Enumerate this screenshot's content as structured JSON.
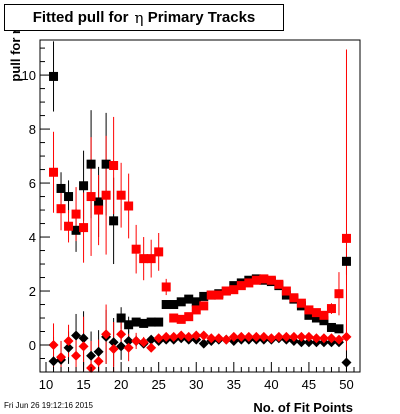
{
  "title": {
    "text": "Fitted pull for ",
    "symbol": "η",
    "suffix": " Primary Tracks"
  },
  "timestamp": "Fri Jun 26 19:12:16 2015",
  "colors": {
    "black_series": "#000000",
    "red_series": "#ff0000",
    "frame": "#000000"
  },
  "chart_data": {
    "type": "scatter",
    "title": "Fitted pull for η Primary Tracks",
    "xlabel": "No. of Fit Points",
    "ylabel": "pull for η",
    "xlim": [
      9.2,
      51.8
    ],
    "ylim": [
      -1.0,
      11.3
    ],
    "xticks": [
      10,
      15,
      20,
      25,
      30,
      35,
      40,
      45,
      50
    ],
    "yticks": [
      0,
      2,
      4,
      6,
      8,
      10
    ],
    "grid": false,
    "series": [
      {
        "marker": "square",
        "color": "#000000",
        "x": [
          11,
          12,
          13,
          14,
          15,
          16,
          17,
          18,
          19,
          20,
          21,
          22,
          23,
          24,
          25,
          26,
          27,
          28,
          29,
          30,
          31,
          32,
          33,
          34,
          35,
          36,
          37,
          38,
          39,
          40,
          41,
          42,
          43,
          44,
          45,
          46,
          47,
          48,
          49,
          50
        ],
        "y": [
          9.95,
          5.8,
          5.5,
          4.25,
          5.9,
          6.7,
          5.3,
          6.7,
          4.6,
          1.0,
          0.75,
          0.85,
          0.8,
          0.85,
          0.85,
          1.5,
          1.5,
          1.6,
          1.7,
          1.6,
          1.8,
          1.85,
          1.9,
          2.0,
          2.2,
          2.3,
          2.4,
          2.45,
          2.4,
          2.35,
          2.2,
          1.85,
          1.7,
          1.45,
          1.1,
          1.0,
          0.9,
          0.65,
          0.6,
          3.1
        ],
        "err": [
          1.3,
          0.6,
          0.6,
          0.8,
          1.3,
          2.0,
          1.3,
          1.9,
          1.6,
          0.4,
          0.3,
          0.1,
          0.1,
          0.1,
          0.1,
          0.1,
          0.1,
          0.1,
          0.1,
          0.1,
          0.1,
          0.1,
          0.1,
          0.1,
          0.1,
          0.1,
          0.1,
          0.1,
          0.1,
          0.1,
          0.1,
          0.1,
          0.1,
          0.1,
          0.1,
          0.1,
          0.1,
          0.1,
          0.1,
          0.5
        ]
      },
      {
        "marker": "square",
        "color": "#ff0000",
        "x": [
          11,
          12,
          13,
          14,
          15,
          16,
          17,
          18,
          19,
          20,
          21,
          22,
          23,
          24,
          25,
          26,
          27,
          28,
          29,
          30,
          31,
          32,
          33,
          34,
          35,
          36,
          37,
          38,
          39,
          40,
          41,
          42,
          43,
          44,
          45,
          46,
          47,
          48,
          49,
          50
        ],
        "y": [
          6.4,
          5.05,
          4.4,
          4.85,
          4.35,
          5.5,
          5.0,
          5.55,
          6.65,
          5.55,
          5.15,
          3.55,
          3.2,
          3.2,
          3.45,
          2.15,
          1.0,
          0.95,
          1.05,
          1.3,
          1.45,
          1.85,
          1.85,
          2.0,
          2.05,
          2.2,
          2.3,
          2.4,
          2.45,
          2.4,
          2.25,
          2.0,
          1.75,
          1.55,
          1.3,
          1.2,
          1.1,
          1.35,
          1.9,
          3.95
        ],
        "err": [
          1.5,
          0.8,
          0.6,
          1.0,
          1.3,
          2.2,
          1.3,
          2.2,
          1.8,
          1.2,
          1.2,
          0.9,
          0.8,
          0.7,
          0.7,
          0.3,
          0.1,
          0.1,
          0.1,
          0.1,
          0.1,
          0.1,
          0.1,
          0.1,
          0.1,
          0.1,
          0.1,
          0.1,
          0.1,
          0.1,
          0.1,
          0.1,
          0.1,
          0.1,
          0.1,
          0.1,
          0.1,
          0.2,
          0.8,
          7.0
        ]
      },
      {
        "marker": "diamond",
        "color": "#000000",
        "x": [
          11,
          12,
          13,
          14,
          15,
          16,
          17,
          18,
          19,
          20,
          21,
          22,
          23,
          24,
          25,
          26,
          27,
          28,
          29,
          30,
          31,
          32,
          33,
          34,
          35,
          36,
          37,
          38,
          39,
          40,
          41,
          42,
          43,
          44,
          45,
          46,
          47,
          48,
          49,
          50
        ],
        "y": [
          -0.6,
          -0.55,
          -0.1,
          0.35,
          0.25,
          -0.4,
          -0.25,
          0.3,
          0.1,
          -0.05,
          0.15,
          0.15,
          0.05,
          0.2,
          0.15,
          0.2,
          0.2,
          0.25,
          0.2,
          0.2,
          0.05,
          0.15,
          0.2,
          0.2,
          0.15,
          0.2,
          0.2,
          0.2,
          0.2,
          0.2,
          0.25,
          0.2,
          0.15,
          0.1,
          0.1,
          0.1,
          0.1,
          0.1,
          0.1,
          -0.65
        ],
        "err": [
          0.9,
          0.7,
          0.6,
          0.8,
          1.0,
          0.9,
          0.8,
          1.0,
          0.9,
          0.5,
          0.4,
          0.2,
          0.1,
          0.1,
          0.1,
          0.05,
          0.05,
          0.05,
          0.05,
          0.05,
          0.05,
          0.05,
          0.05,
          0.05,
          0.05,
          0.05,
          0.05,
          0.05,
          0.05,
          0.05,
          0.05,
          0.05,
          0.05,
          0.05,
          0.05,
          0.05,
          0.05,
          0.05,
          0.1,
          0.6
        ]
      },
      {
        "marker": "diamond",
        "color": "#ff0000",
        "x": [
          11,
          12,
          13,
          14,
          15,
          16,
          17,
          18,
          19,
          20,
          21,
          22,
          23,
          24,
          25,
          26,
          27,
          28,
          29,
          30,
          31,
          32,
          33,
          34,
          35,
          36,
          37,
          38,
          39,
          40,
          41,
          42,
          43,
          44,
          45,
          46,
          47,
          48,
          49,
          50
        ],
        "y": [
          0.0,
          -0.45,
          0.15,
          -0.4,
          -0.05,
          -0.85,
          -0.6,
          0.4,
          -0.15,
          0.4,
          -0.1,
          0.15,
          0.1,
          -0.1,
          0.25,
          0.3,
          0.3,
          0.35,
          0.3,
          0.35,
          0.35,
          0.25,
          0.25,
          0.2,
          0.3,
          0.3,
          0.3,
          0.3,
          0.3,
          0.25,
          0.3,
          0.3,
          0.3,
          0.3,
          0.3,
          0.25,
          0.25,
          0.25,
          0.2,
          0.3
        ],
        "err": [
          0.8,
          0.6,
          0.6,
          0.9,
          1.1,
          1.0,
          0.8,
          1.1,
          1.0,
          0.6,
          0.5,
          0.3,
          0.2,
          0.1,
          0.1,
          0.05,
          0.05,
          0.05,
          0.05,
          0.05,
          0.05,
          0.05,
          0.05,
          0.05,
          0.05,
          0.05,
          0.05,
          0.05,
          0.05,
          0.05,
          0.05,
          0.05,
          0.05,
          0.05,
          0.05,
          0.05,
          0.05,
          0.05,
          0.1,
          0.5
        ]
      }
    ]
  }
}
